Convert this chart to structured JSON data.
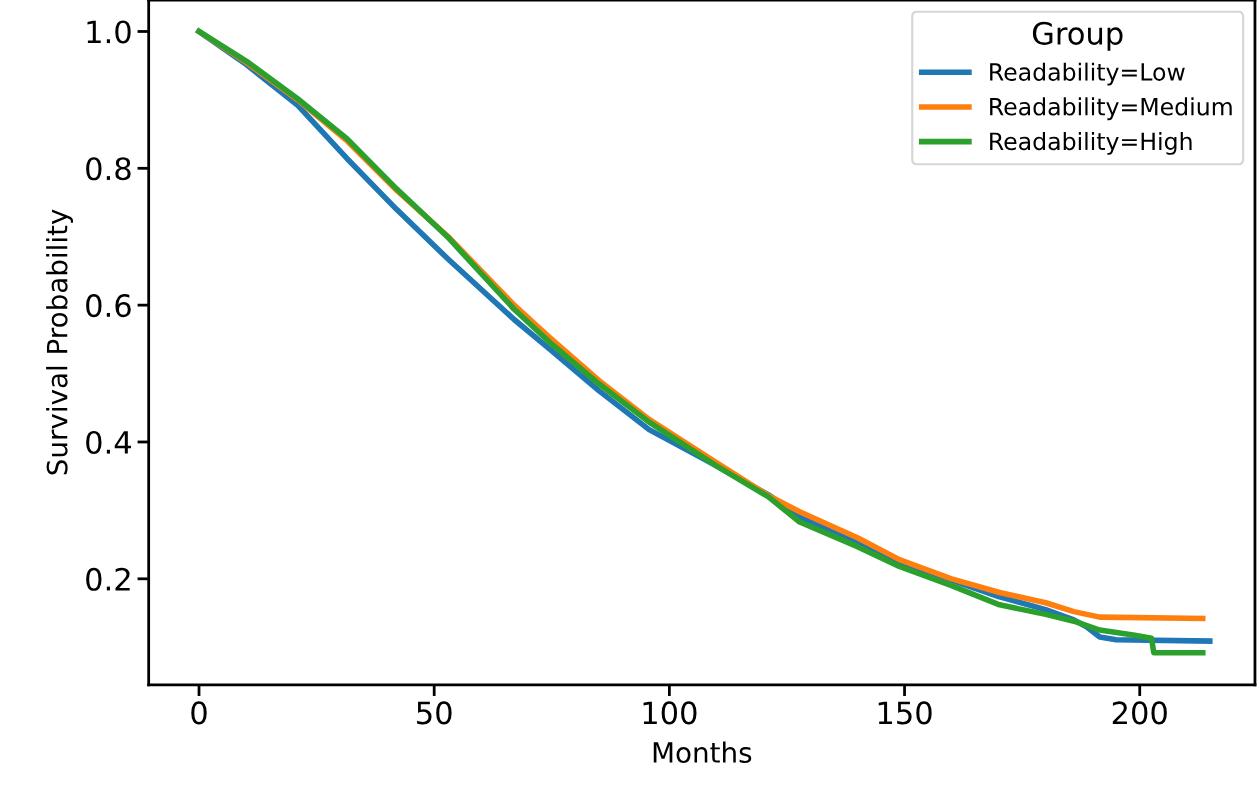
{
  "chart_data": {
    "type": "line",
    "xlabel": "Months",
    "ylabel": "Survival Probability",
    "legend_title": "Group",
    "legend": "top right",
    "grid": false,
    "xlim": [
      -10.7,
      224.5
    ],
    "ylim": [
      0.045,
      1.046
    ],
    "xticks": [
      0,
      50,
      100,
      150,
      200
    ],
    "yticks": [
      0.2,
      0.4,
      0.6,
      0.8,
      {
        "value": 1,
        "label": "1.0"
      }
    ],
    "series": [
      {
        "name": "Readability=Low",
        "color": "#1f77b4",
        "x": [
          0,
          10,
          21,
          31.5,
          42,
          53,
          67,
          74.5,
          85,
          95.7,
          110,
          121,
          128,
          140,
          149,
          160,
          170,
          180,
          186,
          188.7,
          191.5,
          195,
          214.9
        ],
        "values": [
          1.0,
          0.952,
          0.892,
          0.814,
          0.74,
          0.667,
          0.579,
          0.536,
          0.475,
          0.418,
          0.365,
          0.323,
          0.29,
          0.255,
          0.225,
          0.198,
          0.174,
          0.155,
          0.14,
          0.13,
          0.115,
          0.111,
          0.109
        ]
      },
      {
        "name": "Readability=Medium",
        "color": "#ff7f0e",
        "x": [
          0,
          10,
          21,
          31.5,
          42,
          53,
          67,
          74.5,
          85,
          95.7,
          110,
          121,
          127.7,
          140,
          148.9,
          160,
          170.2,
          180,
          186,
          191.5,
          213.4
        ],
        "values": [
          1.0,
          0.955,
          0.9,
          0.84,
          0.768,
          0.7,
          0.6,
          0.553,
          0.49,
          0.433,
          0.37,
          0.322,
          0.298,
          0.26,
          0.228,
          0.2,
          0.18,
          0.165,
          0.152,
          0.144,
          0.142
        ]
      },
      {
        "name": "Readability=High",
        "color": "#2ca02c",
        "x": [
          0,
          10.2,
          20.9,
          31.5,
          42,
          52.8,
          67,
          74.5,
          85,
          95.7,
          110,
          121,
          127.7,
          140,
          148.9,
          160,
          170.2,
          180,
          186,
          191.5,
          198.6,
          202.5,
          203,
          213.4
        ],
        "values": [
          1.0,
          0.956,
          0.902,
          0.843,
          0.77,
          0.7,
          0.594,
          0.546,
          0.485,
          0.429,
          0.365,
          0.32,
          0.283,
          0.247,
          0.218,
          0.19,
          0.162,
          0.148,
          0.138,
          0.125,
          0.118,
          0.113,
          0.092,
          0.092
        ]
      }
    ]
  }
}
